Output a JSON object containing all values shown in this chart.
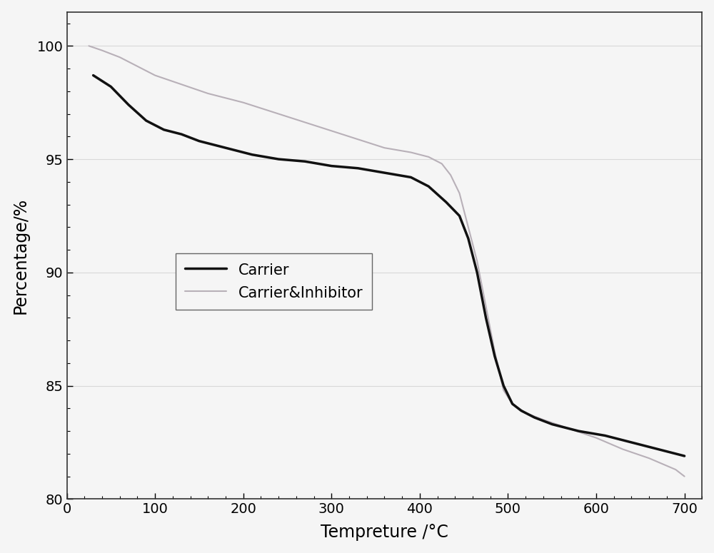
{
  "carrier_x": [
    30,
    50,
    70,
    90,
    110,
    130,
    150,
    170,
    190,
    210,
    240,
    270,
    300,
    330,
    360,
    390,
    410,
    430,
    445,
    455,
    465,
    475,
    485,
    495,
    505,
    515,
    530,
    550,
    580,
    610,
    640,
    670,
    700
  ],
  "carrier_y": [
    98.7,
    98.2,
    97.4,
    96.7,
    96.3,
    96.1,
    95.8,
    95.6,
    95.4,
    95.2,
    95.0,
    94.9,
    94.7,
    94.6,
    94.4,
    94.2,
    93.8,
    93.1,
    92.5,
    91.5,
    90.0,
    88.0,
    86.3,
    85.0,
    84.2,
    83.9,
    83.6,
    83.3,
    83.0,
    82.8,
    82.5,
    82.2,
    81.9
  ],
  "inhibitor_x": [
    25,
    40,
    60,
    80,
    100,
    130,
    160,
    200,
    240,
    280,
    320,
    360,
    390,
    410,
    425,
    435,
    445,
    455,
    465,
    475,
    485,
    495,
    505,
    520,
    540,
    570,
    600,
    630,
    660,
    690,
    700
  ],
  "inhibitor_y": [
    100.0,
    99.8,
    99.5,
    99.1,
    98.7,
    98.3,
    97.9,
    97.5,
    97.0,
    96.5,
    96.0,
    95.5,
    95.3,
    95.1,
    94.8,
    94.3,
    93.5,
    92.0,
    90.5,
    88.5,
    86.5,
    84.8,
    84.2,
    83.8,
    83.5,
    83.1,
    82.7,
    82.2,
    81.8,
    81.3,
    81.0
  ],
  "carrier_color": "#111111",
  "inhibitor_color": "#b8b0b8",
  "carrier_linewidth": 2.5,
  "inhibitor_linewidth": 1.5,
  "carrier_label": "Carrier",
  "inhibitor_label": "Carrier&Inhibitor",
  "xlabel": "Tempreture /°C",
  "ylabel": "Percentage/%",
  "xlim": [
    0,
    720
  ],
  "ylim": [
    80,
    101.5
  ],
  "xticks": [
    0,
    100,
    200,
    300,
    400,
    500,
    600,
    700
  ],
  "yticks": [
    80,
    85,
    90,
    95,
    100
  ],
  "grid_color": "#d8d8d8",
  "background_color": "#f5f5f5",
  "font_size": 15,
  "label_font_size": 17,
  "tick_font_size": 14
}
